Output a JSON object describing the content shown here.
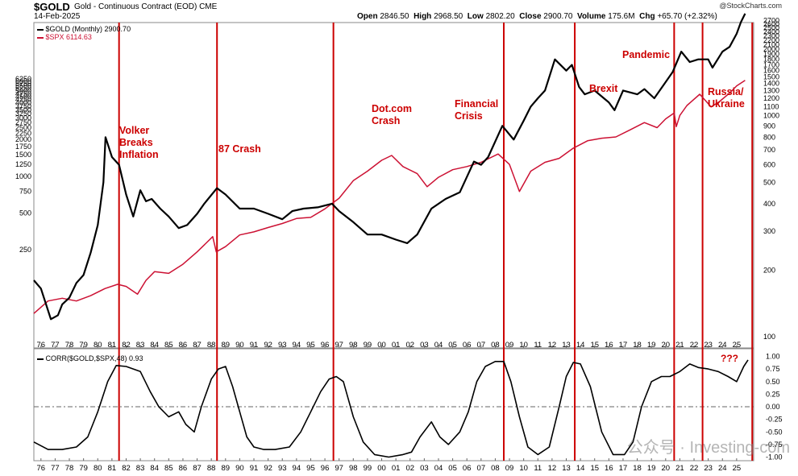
{
  "header": {
    "symbol": "$GOLD",
    "description": "Gold - Continuous Contract (EOD)",
    "exchange": "CME",
    "date": "14-Feb-2025",
    "logo": "@StockCharts.com",
    "open_label": "Open",
    "open": "2846.50",
    "high_label": "High",
    "high": "2968.50",
    "low_label": "Low",
    "low": "2802.20",
    "close_label": "Close",
    "close": "2900.70",
    "volume_label": "Volume",
    "volume": "175.6M",
    "chg_label": "Chg",
    "chg": "+65.70 (+2.32%)"
  },
  "legend": {
    "gold": "$GOLD (Monthly) 2900.70",
    "spx": "$SPX 6114.63",
    "corr": "CORR($GOLD,$SPX,48) 0.93"
  },
  "watermark": "公众号 · Investing-com",
  "colors": {
    "gold": "#000000",
    "spx": "#cc1133",
    "event_line": "#cc0000",
    "annotation": "#cc0000"
  },
  "chart_data": [
    {
      "type": "line",
      "title": "$GOLD Gold - Continuous Contract (EOD) CME",
      "x_ticks": [
        "76",
        "77",
        "78",
        "79",
        "80",
        "81",
        "82",
        "83",
        "84",
        "85",
        "86",
        "87",
        "88",
        "89",
        "90",
        "91",
        "92",
        "93",
        "94",
        "95",
        "96",
        "97",
        "98",
        "99",
        "00",
        "01",
        "02",
        "03",
        "04",
        "05",
        "06",
        "07",
        "08",
        "09",
        "10",
        "11",
        "12",
        "13",
        "14",
        "15",
        "16",
        "17",
        "18",
        "19",
        "20",
        "21",
        "22",
        "23",
        "24",
        "25"
      ],
      "left_scale": "log",
      "left_ticks": [
        250,
        500,
        750,
        1000,
        1250,
        1500,
        1750,
        2000,
        2250,
        2500,
        2750,
        3000,
        3250,
        3500,
        3750,
        4000,
        4250,
        4500,
        4750,
        5000,
        5250,
        5500,
        5750,
        6000,
        6250
      ],
      "right_ticks": [
        100,
        200,
        300,
        400,
        500,
        600,
        700,
        800,
        900,
        1000,
        1100,
        1200,
        1300,
        1400,
        1500,
        1600,
        1700,
        1800,
        1900,
        2000,
        2100,
        2200,
        2300,
        2400,
        2500,
        2600,
        2700,
        2800,
        2900,
        3000
      ],
      "series": [
        {
          "name": "$GOLD (Monthly)",
          "color": "#000000",
          "axis": "right",
          "x": [
            1975.0,
            1975.5,
            1976.2,
            1976.7,
            1977.0,
            1977.5,
            1978.0,
            1978.5,
            1979.0,
            1979.5,
            1979.9,
            1980.05,
            1980.5,
            1981.0,
            1981.5,
            1982.0,
            1982.5,
            1982.9,
            1983.3,
            1983.9,
            1984.5,
            1985.2,
            1985.8,
            1986.5,
            1987.0,
            1987.9,
            1988.5,
            1989.5,
            1990.5,
            1991.5,
            1992.5,
            1993.2,
            1994.0,
            1995.0,
            1996.0,
            1996.5,
            1997.5,
            1998.5,
            1999.5,
            2000.5,
            2001.3,
            2002.0,
            2003.0,
            2004.0,
            2005.0,
            2006.0,
            2006.5,
            2007.0,
            2008.0,
            2008.8,
            2009.5,
            2010.0,
            2010.5,
            2011.0,
            2011.7,
            2012.5,
            2012.9,
            2013.4,
            2013.8,
            2014.5,
            2015.5,
            2015.9,
            2016.5,
            2017.5,
            2018.0,
            2018.7,
            2019.5,
            2020.0,
            2020.6,
            2021.2,
            2021.8,
            2022.5,
            2022.8,
            2023.5,
            2024.0,
            2024.5,
            2024.8,
            2025.1
          ],
          "y": [
            180,
            165,
            120,
            125,
            140,
            150,
            175,
            190,
            240,
            320,
            500,
            800,
            650,
            600,
            440,
            350,
            460,
            410,
            420,
            380,
            350,
            310,
            320,
            360,
            400,
            470,
            440,
            380,
            380,
            360,
            340,
            370,
            380,
            385,
            400,
            370,
            330,
            290,
            290,
            275,
            265,
            290,
            380,
            420,
            450,
            620,
            600,
            650,
            900,
            780,
            950,
            1100,
            1200,
            1300,
            1800,
            1600,
            1700,
            1350,
            1250,
            1300,
            1150,
            1060,
            1300,
            1250,
            1320,
            1200,
            1420,
            1580,
            1950,
            1750,
            1800,
            1800,
            1650,
            1950,
            2050,
            2350,
            2650,
            2900
          ]
        },
        {
          "name": "$SPX",
          "color": "#cc1133",
          "axis": "left",
          "x": [
            1975.0,
            1976.0,
            1977.0,
            1978.0,
            1979.0,
            1980.0,
            1980.9,
            1981.5,
            1982.3,
            1982.9,
            1983.5,
            1984.5,
            1985.5,
            1986.5,
            1987.6,
            1987.85,
            1988.5,
            1989.5,
            1990.5,
            1991.5,
            1992.5,
            1993.5,
            1994.5,
            1995.5,
            1996.5,
            1997.5,
            1998.5,
            1999.5,
            2000.2,
            2001.0,
            2002.0,
            2002.7,
            2003.5,
            2004.5,
            2005.5,
            2006.5,
            2007.7,
            2008.5,
            2009.2,
            2010.0,
            2011.0,
            2012.0,
            2013.0,
            2014.0,
            2015.0,
            2016.0,
            2017.0,
            2018.0,
            2018.9,
            2019.5,
            2020.1,
            2020.25,
            2020.5,
            2021.0,
            2021.9,
            2022.7,
            2023.3,
            2024.0,
            2024.5,
            2025.1
          ],
          "y": [
            75,
            95,
            100,
            95,
            105,
            120,
            130,
            125,
            108,
            140,
            165,
            160,
            190,
            240,
            320,
            240,
            265,
            330,
            350,
            380,
            410,
            450,
            460,
            540,
            660,
            920,
            1100,
            1350,
            1480,
            1200,
            1050,
            820,
            980,
            1130,
            1200,
            1300,
            1520,
            1250,
            750,
            1100,
            1300,
            1400,
            1700,
            1950,
            2050,
            2100,
            2400,
            2750,
            2500,
            2950,
            3300,
            2550,
            3150,
            3800,
            4700,
            3700,
            4100,
            4800,
            5500,
            6100
          ]
        }
      ],
      "events": [
        {
          "x": 1981.0,
          "label": "Volker Breaks Inflation",
          "lines": [
            "Volker",
            "Breaks",
            "Inflation"
          ]
        },
        {
          "x": 1987.9,
          "label": "87 Crash",
          "lines": [
            "87 Crash"
          ]
        },
        {
          "x": 1996.1,
          "label": "Dot.com Crash",
          "lines": [
            "Dot.com",
            "Crash"
          ]
        },
        {
          "x": 2008.1,
          "label": "Financial Crisis",
          "lines": [
            "Financial",
            "Crisis"
          ]
        },
        {
          "x": 2013.1,
          "label": "Brexit",
          "lines": [
            "Brexit"
          ]
        },
        {
          "x": 2020.1,
          "label": "Pandemic",
          "lines": [
            "Pandemic"
          ]
        },
        {
          "x": 2022.1,
          "label": "Russia/ Ukraine",
          "lines": [
            "Russia/",
            "Ukraine"
          ]
        },
        {
          "x": 2025.6,
          "label": "",
          "lines": []
        }
      ]
    },
    {
      "type": "line",
      "title": "CORR($GOLD,$SPX,48) 0.93",
      "ylim": [
        -1.0,
        1.0
      ],
      "y_ticks": [
        "1.00",
        "0.75",
        "0.50",
        "0.25",
        "0.00",
        "-0.25",
        "-0.50",
        "-0.75",
        "-1.00"
      ],
      "annotation": "???",
      "series": [
        {
          "name": "CORR($GOLD,$SPX,48)",
          "color": "#000000",
          "x": [
            1975.0,
            1976.0,
            1977.0,
            1978.0,
            1978.8,
            1979.5,
            1980.2,
            1980.8,
            1981.5,
            1982.5,
            1983.2,
            1983.8,
            1984.5,
            1985.2,
            1985.7,
            1986.3,
            1986.8,
            1987.5,
            1988.0,
            1988.5,
            1989.0,
            1989.5,
            1990.0,
            1990.5,
            1991.2,
            1992.0,
            1993.0,
            1993.8,
            1994.5,
            1995.2,
            1995.8,
            1996.3,
            1996.8,
            1997.5,
            1998.2,
            1999.0,
            2000.0,
            2001.0,
            2001.6,
            2002.2,
            2003.0,
            2003.6,
            2004.2,
            2005.0,
            2005.6,
            2006.2,
            2006.8,
            2007.5,
            2008.1,
            2008.6,
            2009.2,
            2009.8,
            2010.5,
            2011.3,
            2012.0,
            2012.5,
            2013.0,
            2013.5,
            2014.2,
            2015.0,
            2015.8,
            2016.6,
            2017.2,
            2017.8,
            2018.5,
            2019.2,
            2019.8,
            2020.5,
            2021.2,
            2021.8,
            2022.5,
            2023.2,
            2023.9,
            2024.5,
            2025.0,
            2025.3
          ],
          "y": [
            -0.7,
            -0.85,
            -0.85,
            -0.8,
            -0.6,
            -0.1,
            0.5,
            0.82,
            0.8,
            0.7,
            0.3,
            0.0,
            -0.2,
            -0.1,
            -0.35,
            -0.5,
            0.0,
            0.55,
            0.75,
            0.8,
            0.4,
            -0.1,
            -0.6,
            -0.8,
            -0.85,
            -0.85,
            -0.8,
            -0.5,
            -0.1,
            0.3,
            0.55,
            0.6,
            0.5,
            -0.2,
            -0.7,
            -0.95,
            -1.0,
            -0.95,
            -0.9,
            -0.6,
            -0.3,
            -0.6,
            -0.75,
            -0.5,
            -0.1,
            0.5,
            0.8,
            0.9,
            0.9,
            0.5,
            -0.2,
            -0.8,
            -0.95,
            -0.8,
            0.0,
            0.6,
            0.88,
            0.85,
            0.4,
            -0.5,
            -0.95,
            -0.95,
            -0.7,
            0.0,
            0.5,
            0.6,
            0.6,
            0.7,
            0.85,
            0.78,
            0.75,
            0.7,
            0.6,
            0.5,
            0.8,
            0.93
          ]
        }
      ]
    }
  ]
}
